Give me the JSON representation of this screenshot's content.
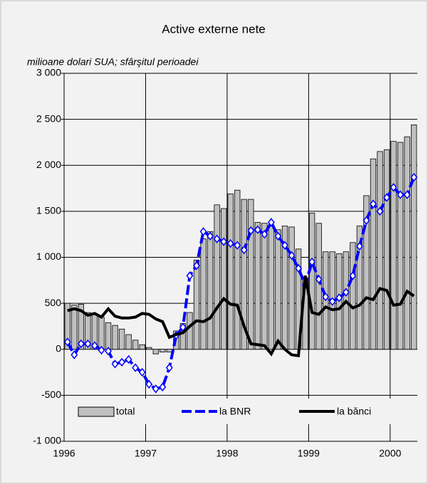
{
  "chart_data": {
    "type": "bar_line",
    "title": "Active externe nete",
    "subtitle": "milioane dolari SUA; sfârşitul perioadei",
    "categories": [
      "1996",
      null,
      null,
      null,
      null,
      null,
      null,
      null,
      null,
      null,
      null,
      null,
      "1997",
      null,
      null,
      null,
      null,
      null,
      null,
      null,
      null,
      null,
      null,
      null,
      "1998",
      null,
      null,
      null,
      null,
      null,
      null,
      null,
      null,
      null,
      null,
      null,
      "1999",
      null,
      null,
      null,
      null,
      null,
      null,
      null,
      null,
      null,
      null,
      null,
      "2000",
      null,
      null,
      null
    ],
    "series": [
      {
        "name": "total",
        "kind": "bar",
        "color": "#c0c0c0",
        "values": [
          500,
          480,
          490,
          400,
          380,
          350,
          290,
          260,
          220,
          160,
          100,
          50,
          20,
          -50,
          -30,
          -30,
          200,
          280,
          400,
          970,
          1200,
          1280,
          1570,
          1530,
          1690,
          1730,
          1630,
          1630,
          1380,
          1370,
          1350,
          1300,
          1340,
          1330,
          1090,
          770,
          1480,
          1370,
          1060,
          1060,
          1040,
          1060,
          1160,
          1340,
          1670,
          2070,
          2150,
          2170,
          2260,
          2250,
          2310,
          2440
        ]
      },
      {
        "name": "la BNR",
        "kind": "dashed-line",
        "color": "#0000ff",
        "values": [
          80,
          -60,
          60,
          60,
          40,
          -10,
          -20,
          -160,
          -140,
          -110,
          -200,
          -250,
          -380,
          -430,
          -410,
          -200,
          150,
          240,
          800,
          910,
          1280,
          1230,
          1200,
          1170,
          1150,
          1130,
          1080,
          1290,
          1300,
          1250,
          1380,
          1230,
          1130,
          1020,
          880,
          700,
          950,
          760,
          570,
          520,
          560,
          620,
          800,
          1120,
          1400,
          1580,
          1500,
          1650,
          1760,
          1680,
          1680,
          1870
        ]
      },
      {
        "name": "la bănci",
        "kind": "line",
        "color": "#000000",
        "values": [
          420,
          440,
          420,
          370,
          390,
          350,
          440,
          360,
          340,
          340,
          350,
          390,
          380,
          330,
          300,
          130,
          160,
          180,
          250,
          310,
          300,
          340,
          450,
          550,
          490,
          480,
          250,
          60,
          50,
          40,
          -50,
          90,
          0,
          -60,
          -70,
          800,
          400,
          380,
          460,
          430,
          440,
          520,
          450,
          480,
          560,
          540,
          660,
          640,
          480,
          490,
          630,
          580
        ]
      }
    ],
    "ylim": [
      -1000,
      3000
    ],
    "yticks": [
      {
        "value": -1000,
        "label": "-1 000"
      },
      -500,
      0,
      500,
      {
        "value": 1000,
        "label": "1 000"
      },
      {
        "value": 1500,
        "label": "1 500"
      },
      {
        "value": 2000,
        "label": "2 000"
      },
      {
        "value": 2500,
        "label": "2 500"
      },
      {
        "value": 3000,
        "label": "3 000"
      }
    ],
    "grid": true,
    "legend": "bottom"
  }
}
